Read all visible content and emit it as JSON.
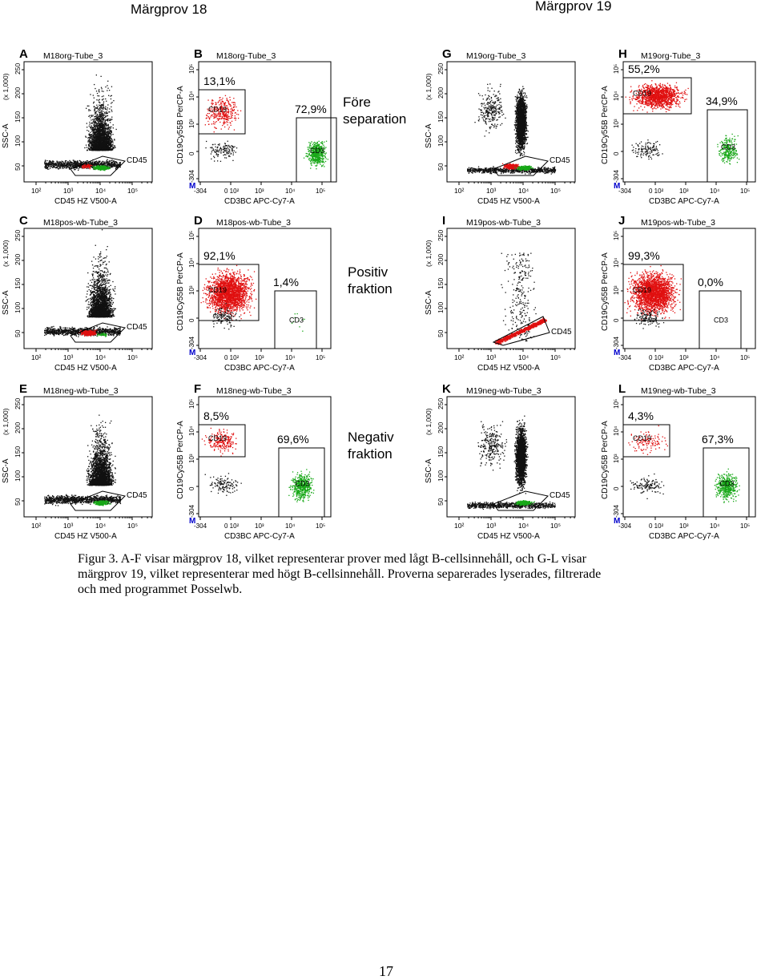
{
  "header": {
    "left_sample": "Märgprov 18",
    "right_sample": "Märgprov 19"
  },
  "row_labels": [
    {
      "line1": "Före",
      "line2": "separation"
    },
    {
      "line1": "Positiv",
      "line2": "fraktion"
    },
    {
      "line1": "Negativ",
      "line2": "fraktion"
    }
  ],
  "colors": {
    "black_dots": "#111111",
    "red_dots": "#e01010",
    "green_dots": "#18a818",
    "gate_marker": "#0000cc"
  },
  "scatter_axes": {
    "y_label": "SSC-A",
    "y_unit": "(x 1,000)",
    "y_ticks": [
      "250",
      "200",
      "150",
      "100",
      "50"
    ],
    "x_label": "CD45 HZ V500-A",
    "x_ticks": [
      "10²",
      "10³",
      "10⁴",
      "10⁵"
    ]
  },
  "gate_axes": {
    "y_label": "CD19Cy55B PerCP-A",
    "y_ticks": [
      "10⁵",
      "10⁴",
      "10³",
      "0",
      "-304"
    ],
    "x_label": "CD3BC APC-Cy7-A",
    "x_ticks": [
      "-304",
      "0 10²",
      "10³",
      "10⁴",
      "10⁵"
    ],
    "marker": "M",
    "cd19_label": "CD19",
    "cd3_label": "CD3"
  },
  "panels": [
    {
      "letter": "A",
      "tube": "M18org-Tube_3",
      "type": "scatter",
      "gate_label": "CD45",
      "profile": "wide"
    },
    {
      "letter": "B",
      "tube": "M18org-Tube_3",
      "type": "gate",
      "cd19_pct": "13,1%",
      "cd3_pct": "72,9%",
      "cd19_level": 0.131,
      "cd3_level": 0.729
    },
    {
      "letter": "G",
      "tube": "M19org-Tube_3",
      "type": "scatter",
      "gate_label": "CD45",
      "profile": "column"
    },
    {
      "letter": "H",
      "tube": "M19org-Tube_3",
      "type": "gate",
      "cd19_pct": "55,2%",
      "cd3_pct": "34,9%",
      "cd19_level": 0.552,
      "cd3_level": 0.349
    },
    {
      "letter": "C",
      "tube": "M18pos-wb-Tube_3",
      "type": "scatter",
      "gate_label": "CD45",
      "profile": "wide"
    },
    {
      "letter": "D",
      "tube": "M18pos-wb-Tube_3",
      "type": "gate",
      "cd19_pct": "92,1%",
      "cd3_pct": "1,4%",
      "cd19_level": 0.921,
      "cd3_level": 0.014
    },
    {
      "letter": "I",
      "tube": "M19pos-wb-Tube_3",
      "type": "scatter",
      "gate_label": "CD45",
      "profile": "sparse"
    },
    {
      "letter": "J",
      "tube": "M19pos-wb-Tube_3",
      "type": "gate",
      "cd19_pct": "99,3%",
      "cd3_pct": "0,0%",
      "cd19_level": 0.993,
      "cd3_level": 0.0
    },
    {
      "letter": "E",
      "tube": "M18neg-wb-Tube_3",
      "type": "scatter",
      "gate_label": "CD45",
      "profile": "wide"
    },
    {
      "letter": "F",
      "tube": "M18neg-wb-Tube_3",
      "type": "gate",
      "cd19_pct": "8,5%",
      "cd3_pct": "69,6%",
      "cd19_level": 0.085,
      "cd3_level": 0.696
    },
    {
      "letter": "K",
      "tube": "M19neg-wb-Tube_3",
      "type": "scatter",
      "gate_label": "CD45",
      "profile": "column"
    },
    {
      "letter": "L",
      "tube": "M19neg-wb-Tube_3",
      "type": "gate",
      "cd19_pct": "4,3%",
      "cd3_pct": "67,3%",
      "cd19_level": 0.043,
      "cd3_level": 0.673
    }
  ],
  "caption": {
    "line1": "Figur 3. A-F visar märgprov 18, vilket representerar prover med lågt B-cellsinnehåll, och G-L visar",
    "line2": "märgprov 19, vilket representerar med högt B-cellsinnehåll. Proverna separerades lyserades, filtrerade",
    "line3": "och med programmet Posselwb."
  },
  "page_number": "17"
}
